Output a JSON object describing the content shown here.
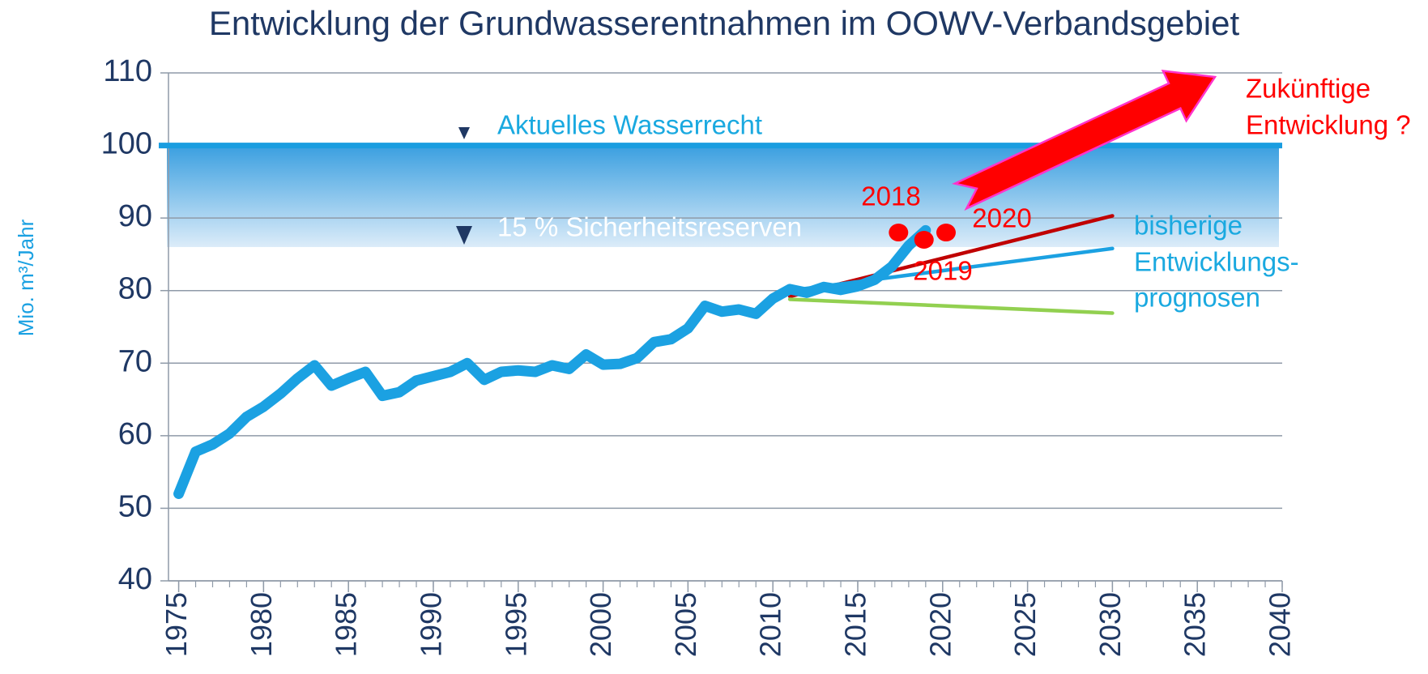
{
  "chart_data": {
    "type": "line",
    "title": "Entwicklung der Grundwasserentnahmen im OOWV-Verbandsgebiet",
    "y_label": "Mio. m³/Jahr",
    "xlim": [
      1974.4,
      2040
    ],
    "xticks": [
      1975,
      1980,
      1985,
      1990,
      1995,
      2000,
      2005,
      2010,
      2015,
      2020,
      2025,
      2030,
      2035,
      2040
    ],
    "ylim": [
      40,
      110
    ],
    "yticks": [
      40,
      50,
      60,
      70,
      80,
      90,
      100,
      110
    ],
    "grid": true,
    "series": [
      {
        "color": "#1ba1e2",
        "x": [
          1975,
          1976,
          1977,
          1978,
          1979,
          1980,
          1981,
          1982,
          1983,
          1984,
          1985,
          1986,
          1987,
          1988,
          1989,
          1990,
          1991,
          1992,
          1993,
          1994,
          1995,
          1996,
          1997,
          1998,
          1999,
          2000,
          2001,
          2002,
          2003,
          2004,
          2005,
          2006,
          2007,
          2008,
          2009,
          2010,
          2011,
          2012,
          2013,
          2014,
          2015,
          2016,
          2017,
          2018,
          2019
        ],
        "values": [
          52,
          57.8,
          58.8,
          60.3,
          62.6,
          64,
          65.8,
          67.9,
          69.7,
          66.9,
          67.9,
          68.8,
          65.5,
          66,
          67.6,
          68.2,
          68.8,
          70,
          67.7,
          68.8,
          69,
          68.8,
          69.7,
          69.2,
          71.2,
          69.8,
          69.9,
          70.7,
          72.9,
          73.3,
          74.8,
          77.9,
          77.1,
          77.4,
          76.8,
          78.9,
          80.2,
          79.7,
          80.5,
          80.1,
          80.6,
          81.5,
          83.3,
          86.2,
          88.3
        ]
      },
      {
        "color": "#c00000",
        "x": [
          2011,
          2030
        ],
        "values": [
          79.2,
          90.3
        ]
      },
      {
        "color": "#1ba1e2",
        "x": [
          2011,
          2030
        ],
        "values": [
          80.0,
          85.8
        ]
      },
      {
        "color": "#92d050",
        "x": [
          2011,
          2030
        ],
        "values": [
          78.8,
          76.9
        ]
      }
    ],
    "points": {
      "color": "#ff0000",
      "x": [
        2017.4,
        2018.9,
        2020.2
      ],
      "values": [
        88,
        87,
        88
      ]
    },
    "water_right": {
      "value": 100,
      "label": "Aktuelles Wasserrecht"
    },
    "reserve": {
      "value": 86,
      "label": "15 % Sicherheitsreserven"
    },
    "annotations": [
      "2018",
      "2019",
      "2020",
      "bisherige",
      "Entwicklungs-",
      "prognosen",
      "Zukünftige",
      "Entwicklung ?"
    ]
  }
}
